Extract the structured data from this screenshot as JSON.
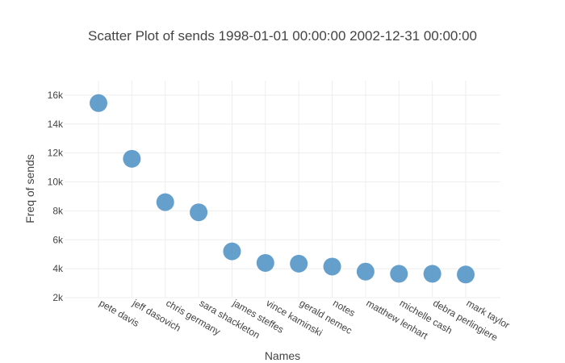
{
  "chart_data": {
    "type": "scatter",
    "title": "Scatter Plot of sends 1998-01-01 00:00:00 2002-12-31 00:00:00",
    "xlabel": "Names",
    "ylabel": "Freq of sends",
    "ylim": [
      2000,
      17000
    ],
    "yticks": [
      2000,
      4000,
      6000,
      8000,
      10000,
      12000,
      14000,
      16000
    ],
    "ytick_labels": [
      "2k",
      "4k",
      "6k",
      "8k",
      "10k",
      "12k",
      "14k",
      "16k"
    ],
    "grid": true,
    "color": "#4a8fc4",
    "categories": [
      "pete davis",
      "jeff dasovich",
      "chris germany",
      "sara shackleton",
      "james steffes",
      "vince kaminski",
      "gerald nemec",
      "notes",
      "matthew lenhart",
      "michelle cash",
      "debra perlingiere",
      "mark taylor"
    ],
    "values": [
      15450,
      11600,
      8600,
      7900,
      5200,
      4400,
      4350,
      4150,
      3800,
      3650,
      3650,
      3600
    ]
  }
}
